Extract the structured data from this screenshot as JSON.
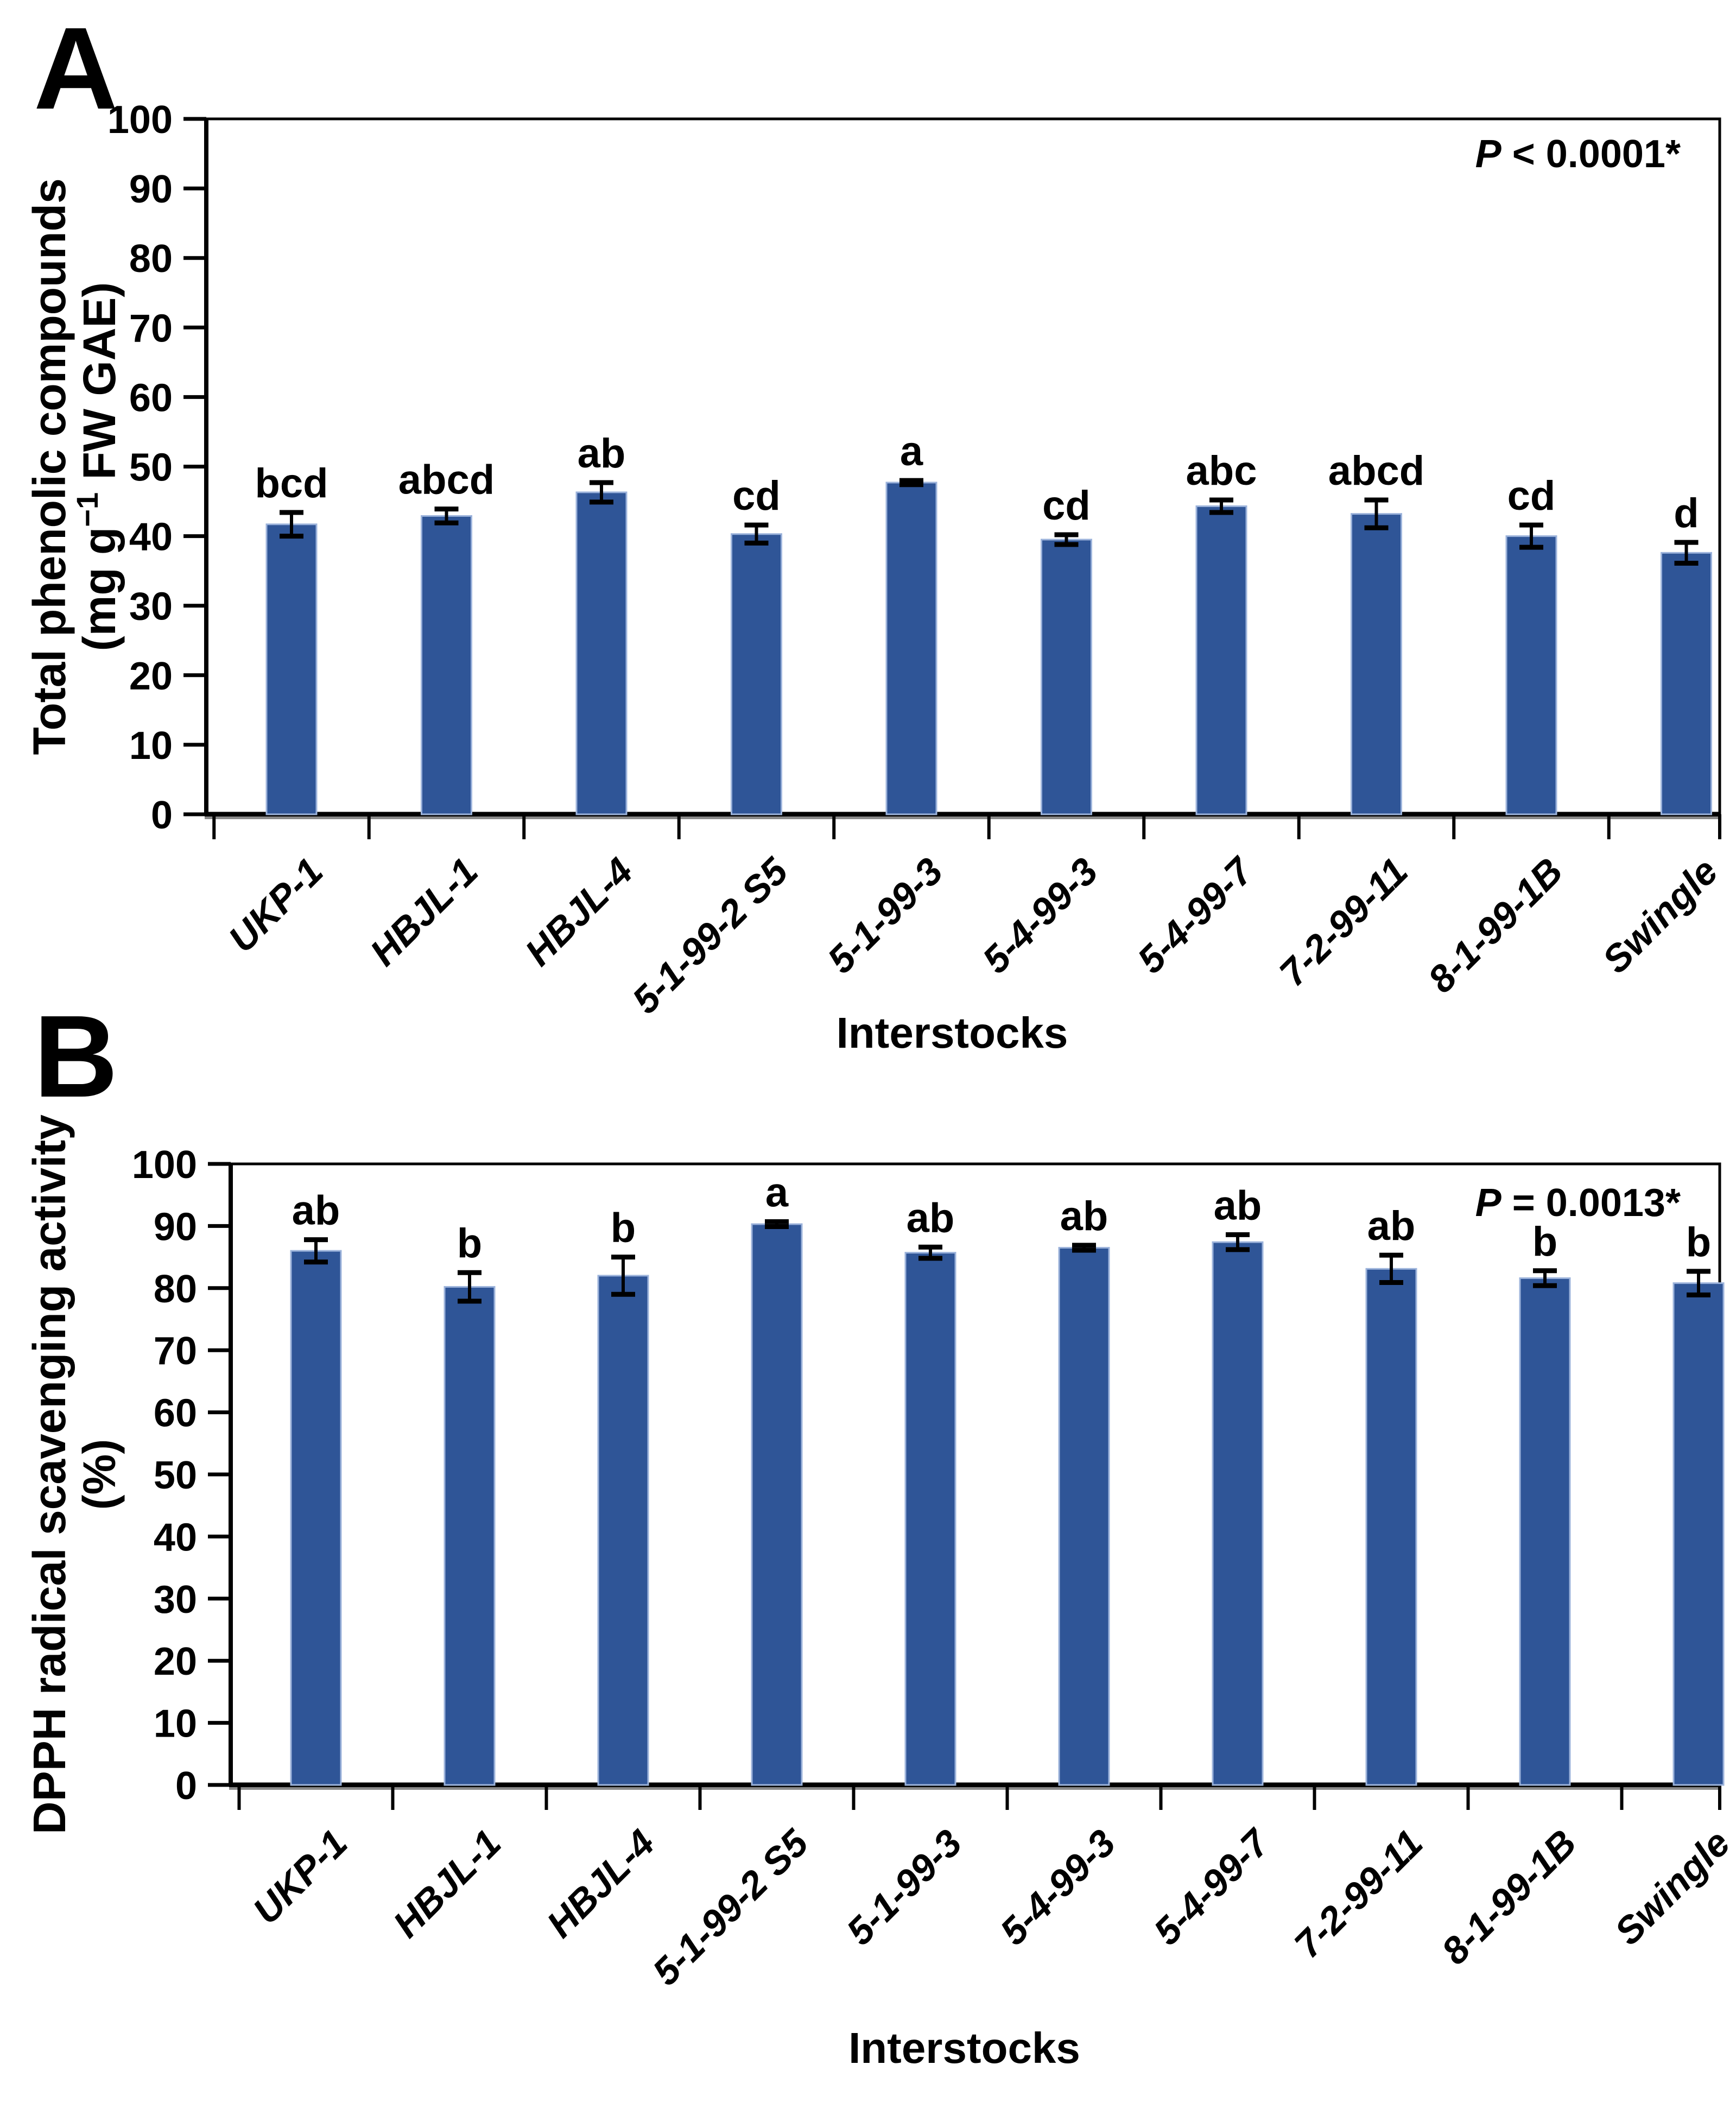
{
  "page": {
    "panel_a_label": "A",
    "panel_b_label": "B",
    "background": "#ffffff"
  },
  "colors": {
    "bar_fill": "#2F5597",
    "bar_border": "#9CB3DB",
    "axis": "#000000",
    "axis_shadow": "#8a8a8a",
    "error_bar": "#000000",
    "text": "#000000"
  },
  "chart_data": [
    {
      "type": "bar",
      "panel": "A",
      "ylabel_line1": "Total phenolic compounds",
      "ylabel_line2_pre": "(mg g",
      "ylabel_line2_sup": "−1",
      "ylabel_line2_post": " FW GAE)",
      "xlabel": "Interstocks",
      "p_prefix": "P",
      "p_text": " < 0.0001*",
      "ylim": [
        0,
        100
      ],
      "ytick_step": 10,
      "grid": false,
      "legend": "none",
      "categories": [
        "UKP-1",
        "HBJL-1",
        "HBJL-4",
        "5-1-99-2 S5",
        "5-1-99-3",
        "5-4-99-3",
        "5-4-99-7",
        "7-2-99-11",
        "8-1-99-1B",
        "Swingle"
      ],
      "values": [
        41.7,
        42.9,
        46.3,
        40.3,
        47.7,
        39.5,
        44.3,
        43.2,
        40.0,
        37.6
      ],
      "errors": [
        1.7,
        1.0,
        1.4,
        1.3,
        0.3,
        0.7,
        0.9,
        2.0,
        1.6,
        1.5
      ],
      "sig_letters": [
        "bcd",
        "abcd",
        "ab",
        "cd",
        "a",
        "cd",
        "abc",
        "abcd",
        "cd",
        "d"
      ]
    },
    {
      "type": "bar",
      "panel": "B",
      "ylabel_line1": "DPPH radical scavenging activity",
      "ylabel_line2_pre": "(%)",
      "ylabel_line2_sup": "",
      "ylabel_line2_post": "",
      "xlabel": "Interstocks",
      "p_prefix": "P",
      "p_text": " =  0.0013*",
      "ylim": [
        0,
        100
      ],
      "ytick_step": 10,
      "grid": false,
      "legend": "none",
      "categories": [
        "UKP-1",
        "HBJL-1",
        "HBJL-4",
        "5-1-99-2 S5",
        "5-1-99-3",
        "5-4-99-3",
        "5-4-99-7",
        "7-2-99-11",
        "8-1-99-1B",
        "Swingle"
      ],
      "values": [
        86.0,
        80.2,
        82.0,
        90.3,
        85.7,
        86.5,
        87.4,
        83.1,
        81.6,
        80.8
      ],
      "errors": [
        1.8,
        2.3,
        3.0,
        0.4,
        0.9,
        0.4,
        1.2,
        2.2,
        1.2,
        1.9
      ],
      "sig_letters": [
        "ab",
        "b",
        "b",
        "a",
        "ab",
        "ab",
        "ab",
        "ab",
        "b",
        "b"
      ]
    }
  ]
}
